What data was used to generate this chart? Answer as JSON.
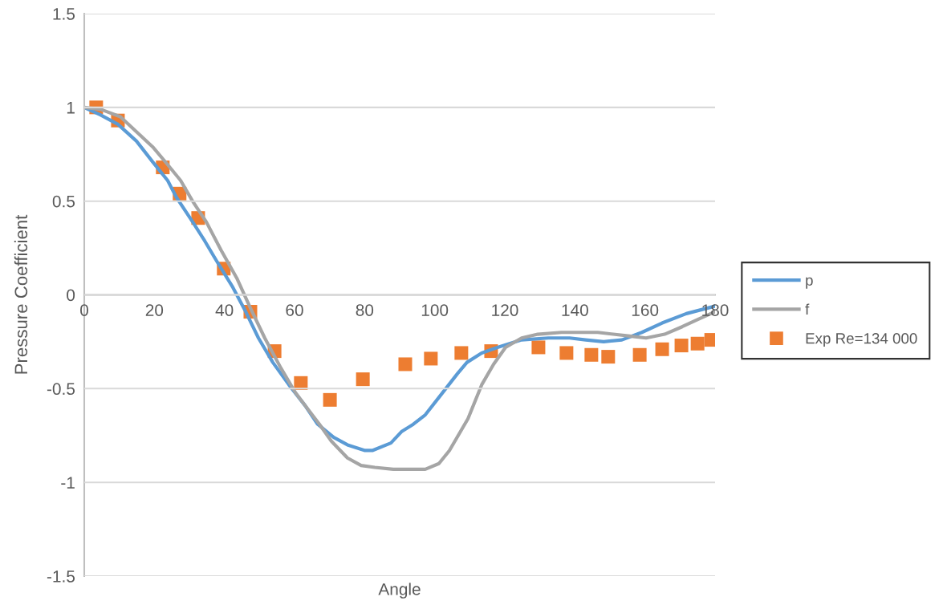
{
  "chart_data": {
    "type": "line",
    "xlabel": "Angle",
    "ylabel": "Pressure Coefficient",
    "xlim": [
      0,
      180
    ],
    "ylim": [
      -1.5,
      1.5
    ],
    "xticks": [
      0,
      20,
      40,
      60,
      80,
      100,
      120,
      140,
      160,
      180
    ],
    "yticks": [
      -1.5,
      -1,
      -0.5,
      0,
      0.5,
      1,
      1.5
    ],
    "grid": "y",
    "legend": "right",
    "series": [
      {
        "name": "p",
        "color": "#5b9bd5",
        "marker": "none",
        "x": [
          0,
          4.6,
          9.6,
          14.9,
          19.5,
          23.8,
          26.3,
          30.9,
          34.3,
          37.8,
          42.4,
          45.8,
          49.7,
          53.8,
          58.4,
          63.0,
          66.6,
          71.2,
          75.1,
          80.1,
          82.2,
          87.5,
          90.5,
          93.9,
          97.3,
          101.9,
          106.5,
          109.2,
          113.4,
          117.9,
          124.8,
          132.4,
          138.5,
          143.1,
          148.2,
          153.4,
          159.1,
          164.9,
          171.8,
          180
        ],
        "values": [
          1.0,
          0.96,
          0.91,
          0.82,
          0.71,
          0.61,
          0.52,
          0.39,
          0.29,
          0.18,
          0.04,
          -0.08,
          -0.23,
          -0.36,
          -0.48,
          -0.59,
          -0.69,
          -0.76,
          -0.8,
          -0.83,
          -0.83,
          -0.79,
          -0.73,
          -0.69,
          -0.64,
          -0.53,
          -0.42,
          -0.36,
          -0.31,
          -0.28,
          -0.24,
          -0.23,
          -0.23,
          -0.24,
          -0.25,
          -0.24,
          -0.2,
          -0.15,
          -0.1,
          -0.06
        ]
      },
      {
        "name": "f",
        "color": "#a5a5a5",
        "marker": "none",
        "x": [
          0,
          4.6,
          10.3,
          14.9,
          19.5,
          24.0,
          27.5,
          30.9,
          34.8,
          39.0,
          43.5,
          47.4,
          51.5,
          56.1,
          60.2,
          63.0,
          67.1,
          70.5,
          75.1,
          79.0,
          82.9,
          88.2,
          91.6,
          97.3,
          101.2,
          104.2,
          109.5,
          113.4,
          116.8,
          120.2,
          124.8,
          129.4,
          136.2,
          146.5,
          155.7,
          160.3,
          165.6,
          170.6,
          175.2,
          180
        ],
        "values": [
          1.0,
          0.99,
          0.95,
          0.87,
          0.79,
          0.69,
          0.61,
          0.5,
          0.39,
          0.24,
          0.09,
          -0.07,
          -0.23,
          -0.39,
          -0.52,
          -0.59,
          -0.69,
          -0.78,
          -0.87,
          -0.91,
          -0.92,
          -0.93,
          -0.93,
          -0.93,
          -0.9,
          -0.83,
          -0.66,
          -0.48,
          -0.37,
          -0.28,
          -0.23,
          -0.21,
          -0.2,
          -0.2,
          -0.22,
          -0.23,
          -0.21,
          -0.17,
          -0.13,
          -0.09
        ]
      },
      {
        "name": "Exp Re=134 000",
        "type": "scatter",
        "color": "#ed7d31",
        "marker": "square",
        "x": [
          3.4,
          9.6,
          22.4,
          27.2,
          32.5,
          39.8,
          47.4,
          54.3,
          61.8,
          70.1,
          79.5,
          91.6,
          98.9,
          107.6,
          116.1,
          129.6,
          137.6,
          144.7,
          149.5,
          158.5,
          164.9,
          170.4,
          175.0,
          178.9
        ],
        "values": [
          1.0,
          0.93,
          0.68,
          0.54,
          0.41,
          0.14,
          -0.09,
          -0.3,
          -0.47,
          -0.56,
          -0.45,
          -0.37,
          -0.34,
          -0.31,
          -0.3,
          -0.28,
          -0.31,
          -0.32,
          -0.33,
          -0.32,
          -0.29,
          -0.27,
          -0.26,
          -0.24
        ]
      }
    ]
  }
}
